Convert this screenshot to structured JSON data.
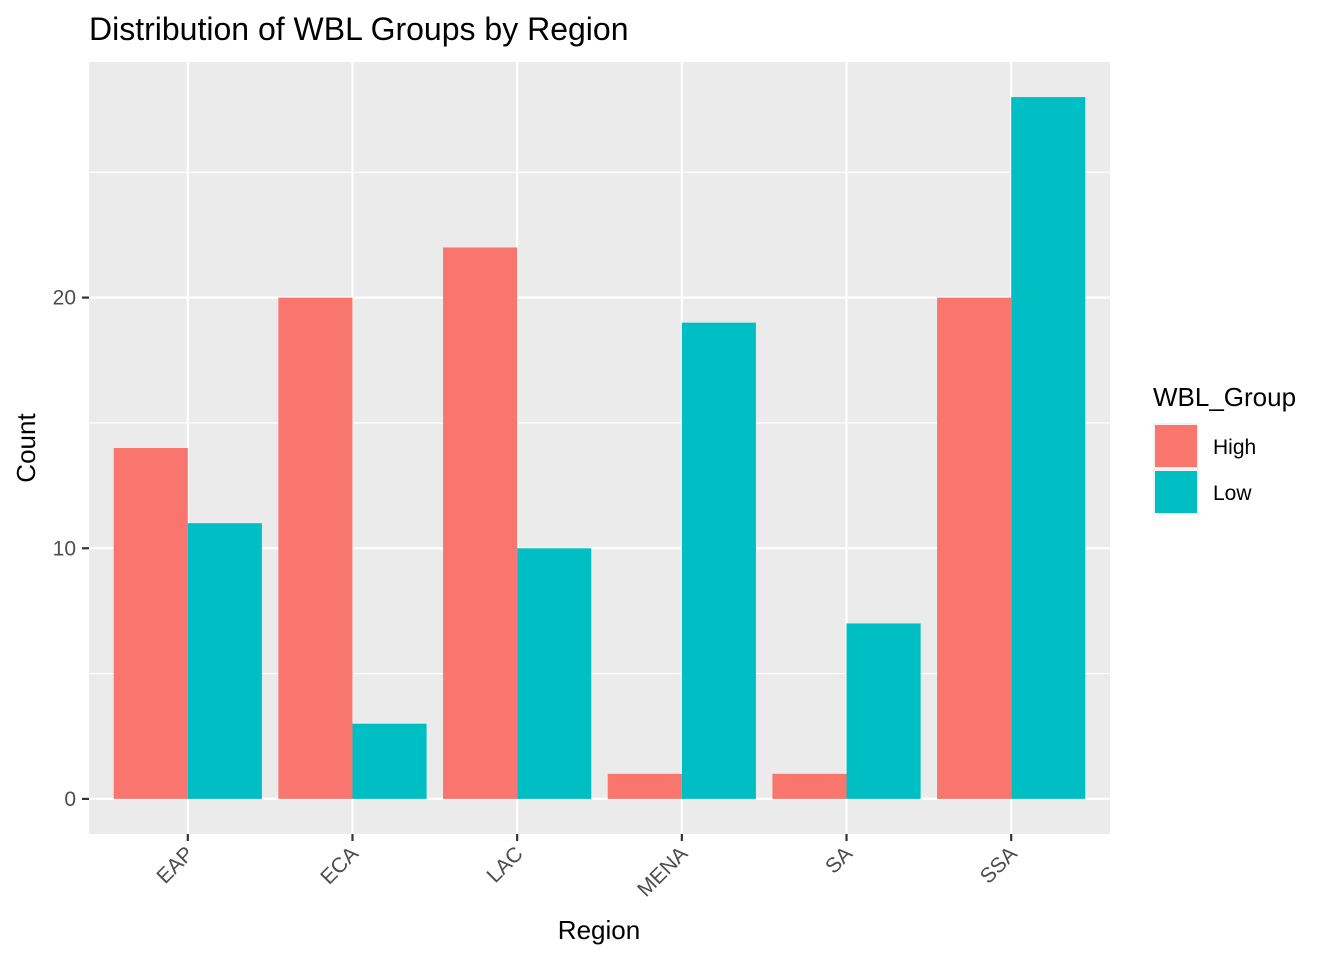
{
  "chart_data": {
    "type": "bar",
    "title": "Distribution of WBL Groups by Region",
    "xlabel": "Region",
    "ylabel": "Count",
    "categories": [
      "EAP",
      "ECA",
      "LAC",
      "MENA",
      "SA",
      "SSA"
    ],
    "series": [
      {
        "name": "High",
        "color": "#F8766D",
        "values": [
          14,
          20,
          22,
          1,
          1,
          20
        ]
      },
      {
        "name": "Low",
        "color": "#00BFC4",
        "values": [
          11,
          3,
          10,
          19,
          7,
          28
        ]
      }
    ],
    "ylim": [
      -1.4,
      29.4
    ],
    "yticks": [
      "0",
      "10",
      "20"
    ],
    "grid": true,
    "legend": {
      "title": "WBL_Group",
      "position": "right"
    },
    "panel_background": "#EBEBEB"
  }
}
